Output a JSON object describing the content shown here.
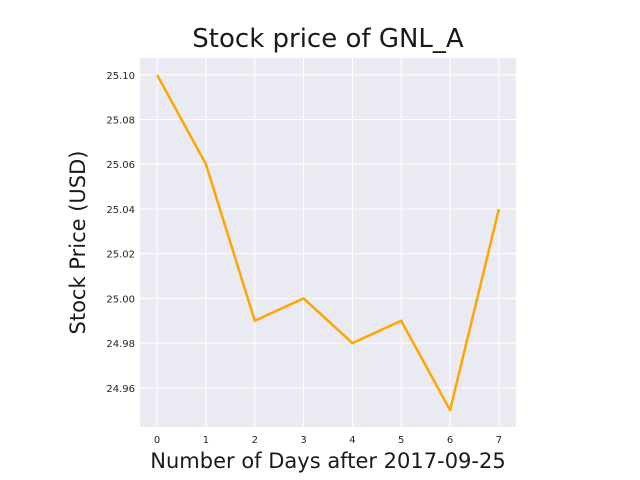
{
  "chart_data": {
    "type": "line",
    "title": "Stock price of GNL_A",
    "xlabel": "Number of Days after 2017-09-25",
    "ylabel": "Stock Price (USD)",
    "x": [
      0,
      1,
      2,
      3,
      4,
      5,
      6,
      7
    ],
    "series": [
      {
        "values": [
          25.1,
          25.06,
          24.99,
          25.0,
          24.98,
          24.99,
          24.95,
          25.04
        ],
        "color": "#FFA500"
      }
    ],
    "x_ticks": [
      "0",
      "1",
      "2",
      "3",
      "4",
      "5",
      "6",
      "7"
    ],
    "y_ticks": [
      "24.96",
      "24.98",
      "25.00",
      "25.02",
      "25.04",
      "25.06",
      "25.08",
      "25.10"
    ],
    "xlim": [
      -0.35,
      7.35
    ],
    "ylim": [
      24.9425,
      25.1075
    ],
    "grid": true,
    "background_color": "#EAEAF2",
    "grid_color": "#FFFFFF"
  }
}
